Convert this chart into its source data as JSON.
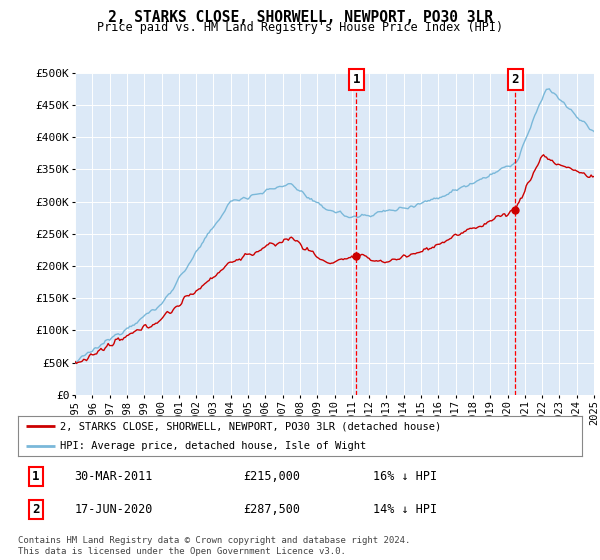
{
  "title": "2, STARKS CLOSE, SHORWELL, NEWPORT, PO30 3LR",
  "subtitle": "Price paid vs. HM Land Registry's House Price Index (HPI)",
  "background_color": "#dce9f7",
  "plot_bg_color": "#dce9f7",
  "ylim": [
    0,
    500000
  ],
  "yticks": [
    0,
    50000,
    100000,
    150000,
    200000,
    250000,
    300000,
    350000,
    400000,
    450000,
    500000
  ],
  "ytick_labels": [
    "£0",
    "£50K",
    "£100K",
    "£150K",
    "£200K",
    "£250K",
    "£300K",
    "£350K",
    "£400K",
    "£450K",
    "£500K"
  ],
  "hpi_color": "#7ab8d9",
  "property_color": "#cc0000",
  "marker1_date_x": 2011.25,
  "marker1_price": 215000,
  "marker2_date_x": 2020.46,
  "marker2_price": 287500,
  "legend_property": "2, STARKS CLOSE, SHORWELL, NEWPORT, PO30 3LR (detached house)",
  "legend_hpi": "HPI: Average price, detached house, Isle of Wight",
  "footer": "Contains HM Land Registry data © Crown copyright and database right 2024.\nThis data is licensed under the Open Government Licence v3.0.",
  "xmin": 1995,
  "xmax": 2025,
  "xtick_years": [
    1995,
    1996,
    1997,
    1998,
    1999,
    2000,
    2001,
    2002,
    2003,
    2004,
    2005,
    2006,
    2007,
    2008,
    2009,
    2010,
    2011,
    2012,
    2013,
    2014,
    2015,
    2016,
    2017,
    2018,
    2019,
    2020,
    2021,
    2022,
    2023,
    2024,
    2025
  ]
}
